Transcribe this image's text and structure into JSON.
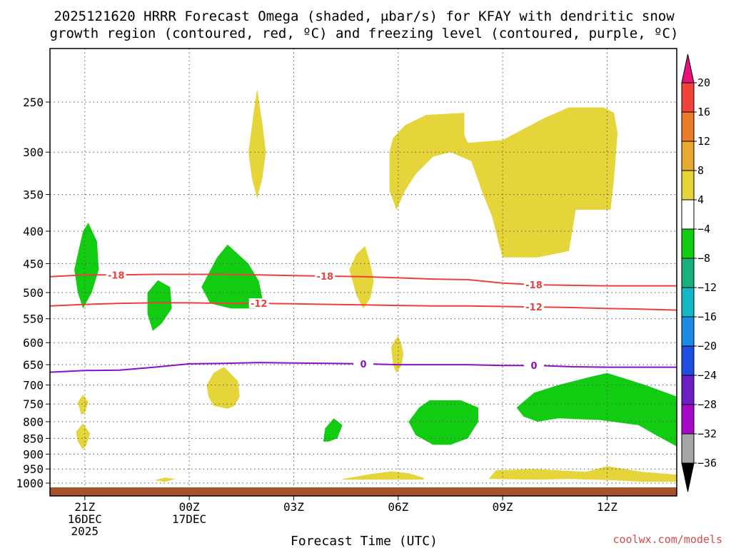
{
  "chart_data": {
    "type": "time-height",
    "title_line1": "2025121620 HRRR Forecast Omega (shaded, μbar/s) for KFAY with dendritic snow",
    "title_line2": "growth region (contoured, red, ºC) and freezing level (contoured, purple, ºC)",
    "xlabel": "Forecast Time (UTC)",
    "credit": "coolwx.com/models",
    "x_range_hours": [
      0,
      18
    ],
    "x_ticks": [
      {
        "hour": 1,
        "lines": [
          "21Z",
          "16DEC",
          "2025"
        ]
      },
      {
        "hour": 4,
        "lines": [
          "00Z",
          "17DEC"
        ]
      },
      {
        "hour": 7,
        "lines": [
          "03Z"
        ]
      },
      {
        "hour": 10,
        "lines": [
          "06Z"
        ]
      },
      {
        "hour": 13,
        "lines": [
          "09Z"
        ]
      },
      {
        "hour": 16,
        "lines": [
          "12Z"
        ]
      }
    ],
    "y_ticks_hpa": [
      250,
      300,
      350,
      400,
      450,
      500,
      550,
      600,
      650,
      700,
      750,
      800,
      850,
      900,
      950,
      1000
    ],
    "colorbar": {
      "labels": [
        "20",
        "16",
        "12",
        "8",
        "4",
        "−4",
        "−8",
        "−12",
        "−16",
        "−20",
        "−24",
        "−28",
        "−32",
        "−36"
      ],
      "colors": [
        "#e8127a",
        "#f0433a",
        "#ec7b2c",
        "#e6aa33",
        "#e6d53a",
        "#ffffff",
        "#11cc11",
        "#19b07e",
        "#14b8c4",
        "#1a8ce8",
        "#1f4fe0",
        "#6a1ec4",
        "#a60ac8",
        "#a6a6a6",
        "#000000"
      ]
    },
    "contours": [
      {
        "name": "dendritic-top",
        "label": "-18",
        "color": "#ee4040",
        "points": [
          [
            0,
            472
          ],
          [
            1,
            469
          ],
          [
            2,
            469
          ],
          [
            3,
            468
          ],
          [
            4,
            468
          ],
          [
            5,
            468
          ],
          [
            6,
            469
          ],
          [
            7,
            470
          ],
          [
            8,
            471
          ],
          [
            9,
            472
          ],
          [
            10,
            474
          ],
          [
            11,
            476
          ],
          [
            12,
            477
          ],
          [
            13,
            483
          ],
          [
            14,
            486
          ],
          [
            15,
            487
          ],
          [
            16,
            488
          ],
          [
            17,
            488
          ],
          [
            18,
            488
          ]
        ],
        "label_hours": [
          1.9,
          7.9,
          13.9
        ]
      },
      {
        "name": "dendritic-bottom",
        "label": "-12",
        "color": "#ee4040",
        "points": [
          [
            0,
            525
          ],
          [
            1,
            522
          ],
          [
            2,
            520
          ],
          [
            3,
            519
          ],
          [
            4,
            519
          ],
          [
            5,
            520
          ],
          [
            6,
            520
          ],
          [
            7,
            521
          ],
          [
            8,
            522
          ],
          [
            9,
            523
          ],
          [
            10,
            524
          ],
          [
            11,
            525
          ],
          [
            12,
            525
          ],
          [
            13,
            526
          ],
          [
            14,
            527
          ],
          [
            15,
            528
          ],
          [
            16,
            530
          ],
          [
            17,
            531
          ],
          [
            18,
            533
          ]
        ],
        "label_hours": [
          6.0,
          13.9
        ]
      },
      {
        "name": "freezing-level",
        "label": "0",
        "color": "#8a10c8",
        "points": [
          [
            0,
            668
          ],
          [
            1,
            664
          ],
          [
            2,
            663
          ],
          [
            3,
            656
          ],
          [
            4,
            648
          ],
          [
            5,
            647
          ],
          [
            6,
            645
          ],
          [
            7,
            646
          ],
          [
            8,
            647
          ],
          [
            9,
            648
          ],
          [
            10,
            650
          ],
          [
            11,
            650
          ],
          [
            12,
            650
          ],
          [
            13,
            652
          ],
          [
            14,
            652
          ],
          [
            15,
            655
          ],
          [
            16,
            656
          ],
          [
            17,
            656
          ],
          [
            18,
            656
          ]
        ],
        "label_hours": [
          9.0,
          13.9
        ]
      }
    ],
    "shaded_regions": [
      {
        "name": "rising-cell",
        "class": "-4 to -8",
        "color": "#11cc11",
        "points": [
          [
            0.7,
            460
          ],
          [
            0.95,
            400
          ],
          [
            1.1,
            388
          ],
          [
            1.35,
            415
          ],
          [
            1.4,
            460
          ],
          [
            1.2,
            500
          ],
          [
            0.95,
            530
          ],
          [
            0.8,
            500
          ]
        ]
      },
      {
        "name": "rising-cell",
        "class": "-4 to -8",
        "color": "#11cc11",
        "points": [
          [
            2.8,
            500
          ],
          [
            3.1,
            478
          ],
          [
            3.45,
            490
          ],
          [
            3.5,
            530
          ],
          [
            3.2,
            560
          ],
          [
            2.95,
            575
          ],
          [
            2.8,
            540
          ]
        ]
      },
      {
        "name": "rising-cell",
        "class": "-4 to -8",
        "color": "#11cc11",
        "points": [
          [
            4.35,
            490
          ],
          [
            4.8,
            440
          ],
          [
            5.1,
            420
          ],
          [
            5.7,
            450
          ],
          [
            6.0,
            480
          ],
          [
            6.1,
            510
          ],
          [
            5.9,
            530
          ],
          [
            5.2,
            530
          ],
          [
            4.6,
            520
          ]
        ]
      },
      {
        "name": "rising-cell",
        "class": "-4 to -8",
        "color": "#11cc11",
        "points": [
          [
            7.9,
            820
          ],
          [
            8.15,
            790
          ],
          [
            8.4,
            810
          ],
          [
            8.25,
            850
          ],
          [
            8.0,
            860
          ],
          [
            7.85,
            860
          ]
        ]
      },
      {
        "name": "rising-cell",
        "class": "-4 to -8",
        "color": "#11cc11",
        "points": [
          [
            10.3,
            800
          ],
          [
            10.6,
            760
          ],
          [
            10.9,
            740
          ],
          [
            11.8,
            740
          ],
          [
            12.3,
            760
          ],
          [
            12.3,
            800
          ],
          [
            12.0,
            850
          ],
          [
            11.5,
            870
          ],
          [
            11.0,
            870
          ],
          [
            10.5,
            840
          ]
        ]
      },
      {
        "name": "rising-cell",
        "class": "-4 to -8",
        "color": "#11cc11",
        "points": [
          [
            13.4,
            760
          ],
          [
            13.9,
            720
          ],
          [
            14.6,
            700
          ],
          [
            15.5,
            680
          ],
          [
            16.0,
            670
          ],
          [
            17.1,
            700
          ],
          [
            18.0,
            730
          ],
          [
            18.0,
            875
          ],
          [
            17.4,
            840
          ],
          [
            16.9,
            810
          ],
          [
            15.8,
            795
          ],
          [
            14.6,
            790
          ],
          [
            14.0,
            800
          ],
          [
            13.6,
            785
          ]
        ]
      },
      {
        "name": "sinking-cell",
        "class": "4 to 8",
        "color": "#e6d53a",
        "points": [
          [
            5.7,
            300
          ],
          [
            5.85,
            260
          ],
          [
            5.95,
            238
          ],
          [
            6.1,
            270
          ],
          [
            6.2,
            300
          ],
          [
            6.1,
            330
          ],
          [
            5.95,
            355
          ],
          [
            5.8,
            330
          ]
        ]
      },
      {
        "name": "sinking-cell",
        "class": "4 to 8",
        "color": "#e6d53a",
        "points": [
          [
            9.75,
            300
          ],
          [
            9.85,
            285
          ],
          [
            10.2,
            272
          ],
          [
            10.8,
            262
          ],
          [
            11.9,
            260
          ],
          [
            11.9,
            282
          ],
          [
            12.0,
            290
          ],
          [
            13.0,
            287
          ],
          [
            14.2,
            265
          ],
          [
            14.9,
            255
          ],
          [
            15.9,
            255
          ],
          [
            16.2,
            260
          ],
          [
            16.3,
            280
          ],
          [
            16.2,
            330
          ],
          [
            16.1,
            370
          ],
          [
            15.1,
            370
          ],
          [
            15.0,
            400
          ],
          [
            14.9,
            430
          ],
          [
            14.0,
            440
          ],
          [
            13.0,
            440
          ],
          [
            12.9,
            420
          ],
          [
            12.7,
            380
          ],
          [
            12.4,
            345
          ],
          [
            12.1,
            310
          ],
          [
            11.5,
            300
          ],
          [
            11.0,
            305
          ],
          [
            10.5,
            325
          ],
          [
            10.2,
            345
          ],
          [
            9.95,
            370
          ],
          [
            9.75,
            345
          ]
        ]
      },
      {
        "name": "sinking-cell",
        "class": "4 to 8",
        "color": "#e6d53a",
        "points": [
          [
            8.6,
            460
          ],
          [
            8.8,
            435
          ],
          [
            9.05,
            422
          ],
          [
            9.2,
            450
          ],
          [
            9.3,
            480
          ],
          [
            9.2,
            510
          ],
          [
            9.0,
            530
          ],
          [
            8.8,
            505
          ]
        ]
      },
      {
        "name": "sinking-cell",
        "class": "4 to 8",
        "color": "#e6d53a",
        "points": [
          [
            9.8,
            610
          ],
          [
            9.9,
            595
          ],
          [
            10.0,
            585
          ],
          [
            10.1,
            605
          ],
          [
            10.15,
            625
          ],
          [
            10.1,
            650
          ],
          [
            9.95,
            670
          ],
          [
            9.85,
            650
          ]
        ]
      },
      {
        "name": "sinking-cell",
        "class": "4 to 8",
        "color": "#e6d53a",
        "points": [
          [
            4.5,
            700
          ],
          [
            4.7,
            670
          ],
          [
            5.0,
            655
          ],
          [
            5.4,
            690
          ],
          [
            5.45,
            730
          ],
          [
            5.3,
            755
          ],
          [
            5.1,
            763
          ],
          [
            4.7,
            755
          ],
          [
            4.55,
            730
          ]
        ]
      },
      {
        "name": "sinking-cell",
        "class": "4 to 8",
        "color": "#e6d53a",
        "points": [
          [
            0.8,
            745
          ],
          [
            0.95,
            725
          ],
          [
            1.1,
            745
          ],
          [
            1.0,
            775
          ],
          [
            0.9,
            780
          ]
        ]
      },
      {
        "name": "sinking-cell",
        "class": "4 to 8",
        "color": "#e6d53a",
        "points": [
          [
            0.75,
            830
          ],
          [
            0.95,
            805
          ],
          [
            1.15,
            835
          ],
          [
            1.05,
            870
          ],
          [
            0.95,
            885
          ],
          [
            0.8,
            860
          ]
        ]
      },
      {
        "name": "sinking-cell",
        "class": "4 to 8",
        "color": "#e6d53a",
        "points": [
          [
            8.4,
            985
          ],
          [
            9.2,
            968
          ],
          [
            9.8,
            958
          ],
          [
            10.3,
            965
          ],
          [
            10.75,
            982
          ],
          [
            10.7,
            988
          ],
          [
            8.4,
            988
          ]
        ]
      },
      {
        "name": "sinking-cell",
        "class": "4 to 8",
        "color": "#e6d53a",
        "points": [
          [
            3.0,
            990
          ],
          [
            3.3,
            980
          ],
          [
            3.6,
            985
          ],
          [
            3.3,
            995
          ]
        ]
      },
      {
        "name": "sinking-cell",
        "class": "4 to 8",
        "color": "#e6d53a",
        "points": [
          [
            12.6,
            985
          ],
          [
            12.8,
            955
          ],
          [
            13.9,
            950
          ],
          [
            14.6,
            955
          ],
          [
            15.4,
            960
          ],
          [
            16.0,
            940
          ],
          [
            16.5,
            950
          ],
          [
            17.0,
            960
          ],
          [
            18.0,
            970
          ],
          [
            18.0,
            995
          ],
          [
            17.0,
            995
          ],
          [
            16.2,
            990
          ],
          [
            14.9,
            985
          ],
          [
            14.0,
            988
          ]
        ]
      }
    ]
  }
}
